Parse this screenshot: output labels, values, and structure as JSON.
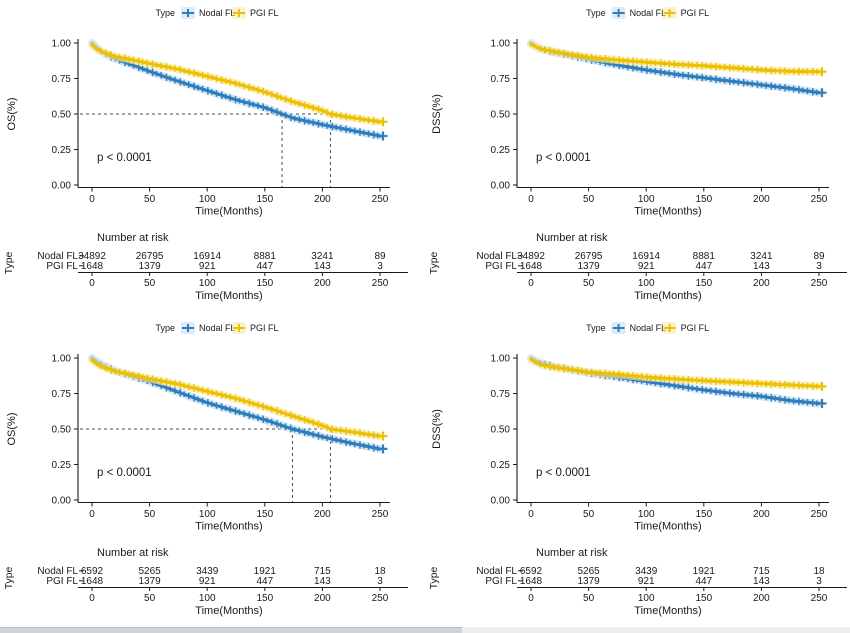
{
  "figure": {
    "legend_title": "Type",
    "colors": {
      "nodal": "#2E7EBE",
      "pgi": "#EDC000",
      "nodal_band": "#C4DCF0",
      "pgi_band": "#F7E9A8",
      "nodal_label": "#5B9BD5",
      "pgi_label": "#F2CC3F",
      "axis": "#1a1a1a",
      "guide": "#4a4a4a",
      "risk_text": "#262626"
    }
  },
  "chart_data": [
    {
      "type": "line",
      "subtype": "kaplan-meier",
      "title": "",
      "ylabel": "OS(%)",
      "xlabel": "Time(Months)",
      "pvalue": "p < 0.0001",
      "legend": {
        "title": "Type",
        "position": "top",
        "items": [
          "Nodal FL",
          "PGI FL"
        ]
      },
      "x_ticks": [
        0,
        50,
        100,
        150,
        200,
        250
      ],
      "y_ticks": [
        "1.00",
        "0.75",
        "0.50",
        "0.25",
        "0.00"
      ],
      "xlim": [
        0,
        255
      ],
      "ylim": [
        0,
        1
      ],
      "grid": false,
      "median_guides": {
        "y": 0.5,
        "x": [
          165,
          207
        ]
      },
      "series": [
        {
          "name": "Nodal FL",
          "x": [
            0,
            5,
            10,
            20,
            30,
            50,
            75,
            100,
            125,
            150,
            165,
            175,
            200,
            225,
            250
          ],
          "y": [
            1.0,
            0.96,
            0.93,
            0.89,
            0.86,
            0.8,
            0.73,
            0.665,
            0.6,
            0.545,
            0.5,
            0.47,
            0.425,
            0.385,
            0.345
          ]
        },
        {
          "name": "PGI FL",
          "x": [
            0,
            5,
            10,
            20,
            30,
            50,
            75,
            100,
            125,
            150,
            175,
            200,
            207,
            225,
            250
          ],
          "y": [
            0.985,
            0.95,
            0.935,
            0.905,
            0.89,
            0.855,
            0.815,
            0.765,
            0.715,
            0.655,
            0.585,
            0.525,
            0.5,
            0.475,
            0.445
          ]
        }
      ],
      "risk_table": {
        "title": "Number at risk",
        "axis_title": "Type",
        "time_label": "Time(Months)",
        "times": [
          0,
          50,
          100,
          150,
          200,
          250
        ],
        "rows": [
          {
            "name": "Nodal FL",
            "values": [
              "34892",
              "26795",
              "16914",
              "8881",
              "3241",
              "89"
            ]
          },
          {
            "name": "PGI FL",
            "values": [
              "1648",
              "1379",
              "921",
              "447",
              "143",
              "3"
            ]
          }
        ]
      }
    },
    {
      "type": "line",
      "subtype": "kaplan-meier",
      "title": "",
      "ylabel": "DSS(%)",
      "xlabel": "Time(Months)",
      "pvalue": "p < 0.0001",
      "legend": {
        "title": "Type",
        "position": "top",
        "items": [
          "Nodal FL",
          "PGI FL"
        ]
      },
      "x_ticks": [
        0,
        50,
        100,
        150,
        200,
        250
      ],
      "y_ticks": [
        "1.00",
        "0.75",
        "0.50",
        "0.25",
        "0.00"
      ],
      "xlim": [
        0,
        255
      ],
      "ylim": [
        0,
        1
      ],
      "grid": false,
      "median_guides": null,
      "series": [
        {
          "name": "Nodal FL",
          "x": [
            0,
            5,
            10,
            20,
            30,
            50,
            75,
            100,
            125,
            150,
            175,
            200,
            225,
            250
          ],
          "y": [
            1.0,
            0.97,
            0.955,
            0.935,
            0.92,
            0.885,
            0.845,
            0.81,
            0.78,
            0.755,
            0.73,
            0.705,
            0.68,
            0.65
          ]
        },
        {
          "name": "PGI FL",
          "x": [
            0,
            5,
            10,
            20,
            30,
            50,
            75,
            100,
            125,
            150,
            175,
            200,
            225,
            250
          ],
          "y": [
            0.99,
            0.97,
            0.955,
            0.94,
            0.925,
            0.9,
            0.88,
            0.865,
            0.85,
            0.84,
            0.825,
            0.81,
            0.8,
            0.798
          ]
        }
      ],
      "risk_table": {
        "title": "Number at risk",
        "axis_title": "Type",
        "time_label": "Time(Months)",
        "times": [
          0,
          50,
          100,
          150,
          200,
          250
        ],
        "rows": [
          {
            "name": "Nodal FL",
            "values": [
              "34892",
              "26795",
              "16914",
              "8881",
              "3241",
              "89"
            ]
          },
          {
            "name": "PGI FL",
            "values": [
              "1648",
              "1379",
              "921",
              "447",
              "143",
              "3"
            ]
          }
        ]
      }
    },
    {
      "type": "line",
      "subtype": "kaplan-meier",
      "title": "",
      "ylabel": "OS(%)",
      "xlabel": "Time(Months)",
      "pvalue": "p < 0.0001",
      "legend": {
        "title": "Type",
        "position": "top",
        "items": [
          "Nodal FL",
          "PGI FL"
        ]
      },
      "x_ticks": [
        0,
        50,
        100,
        150,
        200,
        250
      ],
      "y_ticks": [
        "1.00",
        "0.75",
        "0.50",
        "0.25",
        "0.00"
      ],
      "xlim": [
        0,
        255
      ],
      "ylim": [
        0,
        1
      ],
      "grid": false,
      "median_guides": {
        "y": 0.5,
        "x": [
          174,
          207
        ]
      },
      "series": [
        {
          "name": "Nodal FL",
          "x": [
            0,
            5,
            10,
            20,
            30,
            50,
            75,
            100,
            125,
            150,
            174,
            200,
            225,
            250
          ],
          "y": [
            1.0,
            0.97,
            0.945,
            0.91,
            0.885,
            0.835,
            0.76,
            0.685,
            0.625,
            0.565,
            0.5,
            0.445,
            0.4,
            0.36
          ]
        },
        {
          "name": "PGI FL",
          "x": [
            0,
            5,
            10,
            20,
            30,
            50,
            75,
            100,
            125,
            150,
            175,
            200,
            207,
            225,
            250
          ],
          "y": [
            0.985,
            0.95,
            0.935,
            0.905,
            0.89,
            0.855,
            0.815,
            0.765,
            0.715,
            0.655,
            0.59,
            0.525,
            0.5,
            0.48,
            0.45
          ]
        }
      ],
      "risk_table": {
        "title": "Number at risk",
        "axis_title": "Type",
        "time_label": "Time(Months)",
        "times": [
          0,
          50,
          100,
          150,
          200,
          250
        ],
        "rows": [
          {
            "name": "Nodal FL",
            "values": [
              "6592",
              "5265",
              "3439",
              "1921",
              "715",
              "18"
            ]
          },
          {
            "name": "PGI FL",
            "values": [
              "1648",
              "1379",
              "921",
              "447",
              "143",
              "3"
            ]
          }
        ]
      }
    },
    {
      "type": "line",
      "subtype": "kaplan-meier",
      "title": "",
      "ylabel": "DSS(%)",
      "xlabel": "Time(Months)",
      "pvalue": "p < 0.0001",
      "legend": {
        "title": "Type",
        "position": "top",
        "items": [
          "Nodal FL",
          "PGI FL"
        ]
      },
      "x_ticks": [
        0,
        50,
        100,
        150,
        200,
        250
      ],
      "y_ticks": [
        "1.00",
        "0.75",
        "0.50",
        "0.25",
        "0.00"
      ],
      "xlim": [
        0,
        255
      ],
      "ylim": [
        0,
        1
      ],
      "grid": false,
      "median_guides": null,
      "series": [
        {
          "name": "Nodal FL",
          "x": [
            0,
            5,
            10,
            20,
            30,
            50,
            75,
            100,
            125,
            150,
            175,
            200,
            225,
            250
          ],
          "y": [
            1.0,
            0.975,
            0.96,
            0.94,
            0.925,
            0.895,
            0.865,
            0.835,
            0.805,
            0.775,
            0.75,
            0.73,
            0.7,
            0.68
          ]
        },
        {
          "name": "PGI FL",
          "x": [
            0,
            5,
            10,
            20,
            30,
            50,
            75,
            100,
            125,
            150,
            175,
            200,
            225,
            250
          ],
          "y": [
            0.99,
            0.965,
            0.95,
            0.935,
            0.925,
            0.9,
            0.885,
            0.865,
            0.852,
            0.84,
            0.83,
            0.82,
            0.81,
            0.8
          ]
        }
      ],
      "risk_table": {
        "title": "Number at risk",
        "axis_title": "Type",
        "time_label": "Time(Months)",
        "times": [
          0,
          50,
          100,
          150,
          200,
          250
        ],
        "rows": [
          {
            "name": "Nodal FL",
            "values": [
              "6592",
              "5265",
              "3439",
              "1921",
              "715",
              "18"
            ]
          },
          {
            "name": "PGI FL",
            "values": [
              "1648",
              "1379",
              "921",
              "447",
              "143",
              "3"
            ]
          }
        ]
      }
    }
  ]
}
